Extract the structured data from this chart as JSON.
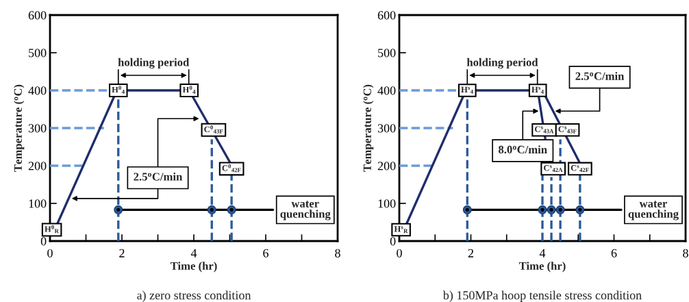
{
  "chart_data": [
    {
      "type": "line",
      "xlabel": "Time (hr)",
      "ylabel": "Temperature ($^{o}$C)",
      "xlim": [
        0,
        8
      ],
      "ylim": [
        0,
        600
      ],
      "xticks": [
        0,
        {
          "value": 1,
          "label": null
        },
        2,
        {
          "value": 3,
          "label": null
        },
        4,
        {
          "value": 5,
          "label": null
        },
        6,
        {
          "value": 7,
          "label": null
        },
        8
      ],
      "yticks": [
        0,
        100,
        200,
        300,
        400,
        500,
        600
      ],
      "legend": false,
      "grid": false,
      "series": [
        {
          "color": "#6b9bd8",
          "line_style": "dashed",
          "x": [
            0,
            1.9
          ],
          "values": [
            400,
            400
          ]
        },
        {
          "color": "#6b9bd8",
          "line_style": "dashed",
          "x": [
            0,
            1.5
          ],
          "values": [
            300,
            300
          ]
        },
        {
          "color": "#6b9bd8",
          "line_style": "dashed",
          "x": [
            0,
            0.95
          ],
          "values": [
            200,
            200
          ]
        },
        {
          "color": "#2b5a9b",
          "line_style": "dashed",
          "x": [
            1.9,
            1.9
          ],
          "values": [
            0,
            380
          ]
        },
        {
          "color": "#2b5a9b",
          "line_style": "dashed",
          "x": [
            4.5,
            4.5
          ],
          "values": [
            0,
            270
          ]
        },
        {
          "color": "#2b5a9b",
          "line_style": "dashed",
          "x": [
            5.05,
            5.05
          ],
          "values": [
            0,
            175
          ]
        },
        {
          "color": "#1f2d6b",
          "line_style": "solid",
          "x": [
            0.2,
            1.86,
            3.87,
            5.0
          ],
          "values": [
            45,
            400,
            400,
            210
          ]
        },
        {
          "color": "#000000",
          "line_style": "solid",
          "x": [
            1.9,
            6.2
          ],
          "values": [
            83,
            83
          ]
        },
        {
          "type": "scatter",
          "color": "#2b5a9b",
          "x": [
            1.9,
            4.5,
            5.05
          ],
          "values": [
            83,
            83,
            83
          ]
        }
      ],
      "annotations": [
        "holding period",
        {
          "text": "H$^{0}$$_{R}$",
          "x": 0.05,
          "y": 30
        },
        {
          "text": "H$^{0}$$_{4}$",
          "x": 1.9,
          "y": 400
        },
        {
          "text": "H$^{0}$$_{4}$",
          "x": 3.87,
          "y": 400
        },
        {
          "text": "C$^{0}$$_{43F}$",
          "x": 4.55,
          "y": 295
        },
        {
          "text": "C$^{0}$$_{42F}$",
          "x": 5.05,
          "y": 192
        },
        "2.5$^{o}$C/min",
        "water\nquenching",
        "a) zero stress condition"
      ]
    },
    {
      "type": "line",
      "xlabel": "Time (hr)",
      "ylabel": "Temperature ($^{o}$C)",
      "xlim": [
        0,
        8
      ],
      "ylim": [
        0,
        600
      ],
      "xticks": [
        0,
        {
          "value": 1,
          "label": null
        },
        2,
        {
          "value": 3,
          "label": null
        },
        4,
        {
          "value": 5,
          "label": null
        },
        6,
        {
          "value": 7,
          "label": null
        },
        8
      ],
      "yticks": [
        0,
        100,
        200,
        300,
        400,
        500,
        600
      ],
      "legend": false,
      "grid": false,
      "series": [
        {
          "color": "#6b9bd8",
          "line_style": "dashed",
          "x": [
            0,
            1.9
          ],
          "values": [
            400,
            400
          ]
        },
        {
          "color": "#6b9bd8",
          "line_style": "dashed",
          "x": [
            0,
            1.5
          ],
          "values": [
            300,
            300
          ]
        },
        {
          "color": "#6b9bd8",
          "line_style": "dashed",
          "x": [
            0,
            0.95
          ],
          "values": [
            200,
            200
          ]
        },
        {
          "color": "#2b5a9b",
          "line_style": "dashed",
          "x": [
            1.9,
            1.9
          ],
          "values": [
            0,
            380
          ]
        },
        {
          "color": "#2b5a9b",
          "line_style": "dashed",
          "x": [
            4.0,
            4.0
          ],
          "values": [
            0,
            270
          ]
        },
        {
          "color": "#2b5a9b",
          "line_style": "dashed",
          "x": [
            4.25,
            4.25
          ],
          "values": [
            0,
            170
          ]
        },
        {
          "color": "#2b5a9b",
          "line_style": "dashed",
          "x": [
            4.5,
            4.5
          ],
          "values": [
            0,
            270
          ]
        },
        {
          "color": "#2b5a9b",
          "line_style": "dashed",
          "x": [
            5.05,
            5.05
          ],
          "values": [
            0,
            175
          ]
        },
        {
          "color": "#1f2d6b",
          "line_style": "solid",
          "x": [
            0.2,
            1.86,
            3.87,
            4.18
          ],
          "values": [
            45,
            400,
            400,
            210
          ]
        },
        {
          "color": "#1f2d6b",
          "line_style": "solid",
          "x": [
            4.0,
            5.03
          ],
          "values": [
            400,
            210
          ]
        },
        {
          "color": "#000000",
          "line_style": "solid",
          "x": [
            1.9,
            6.2
          ],
          "values": [
            83,
            83
          ]
        },
        {
          "type": "scatter",
          "color": "#2b5a9b",
          "x": [
            1.9,
            4.0,
            4.25,
            4.5,
            5.05
          ],
          "values": [
            83,
            83,
            83,
            83,
            83
          ]
        }
      ],
      "annotations": [
        "holding period",
        {
          "text": "H$^{s}$$_{R}$",
          "x": 0.05,
          "y": 30
        },
        {
          "text": "H$^{s}$$_{4}$",
          "x": 1.9,
          "y": 400
        },
        {
          "text": "H$^{s}$$_{4}$",
          "x": 3.87,
          "y": 400
        },
        {
          "text": "C$^{s}$$_{43A}$",
          "x": 4.05,
          "y": 295
        },
        {
          "text": "C$^{s}$$_{43F}$",
          "x": 4.7,
          "y": 295
        },
        {
          "text": "C$^{s}$$_{42A}$",
          "x": 4.3,
          "y": 192
        },
        {
          "text": "C$^{s}$$_{42F}$",
          "x": 5.05,
          "y": 192
        },
        "8.0$^{o}$C/min",
        {
          "text": "2.5$^{o}$C/min",
          "x": 4.3,
          "y": 345
        },
        "water\nquenching",
        "b) 150MPa hoop tensile stress condition"
      ]
    }
  ]
}
